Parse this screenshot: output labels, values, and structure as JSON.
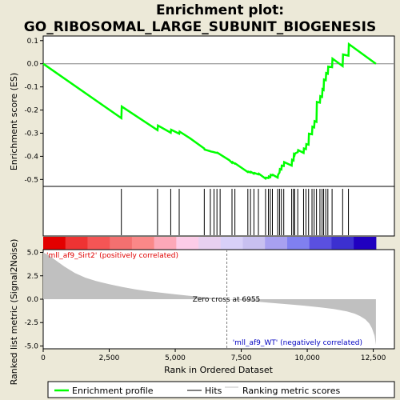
{
  "chart_data": {
    "type": "line",
    "title_line1": "Enrichment plot:",
    "title_line2": "GO_RIBOSOMAL_LARGE_SUBUNIT_BIOGENESIS",
    "top_panel": {
      "ylabel": "Enrichment score (ES)",
      "ylim": [
        -0.53,
        0.12
      ],
      "yticks": [
        -0.5,
        -0.4,
        -0.3,
        -0.2,
        -0.1,
        0.0,
        0.1
      ],
      "ytick_labels": [
        "-0.5",
        "-0.4",
        "-0.3",
        "-0.2",
        "-0.1",
        "0.0",
        "0.1"
      ],
      "series": {
        "name": "Enrichment profile",
        "color": "#00FF00",
        "x": [
          0,
          2960,
          2975,
          4330,
          4345,
          4830,
          4845,
          5150,
          5165,
          5560,
          6100,
          6115,
          6330,
          6345,
          6470,
          6485,
          6580,
          6595,
          6700,
          7050,
          7150,
          7165,
          7260,
          7275,
          7750,
          7765,
          7850,
          7865,
          7980,
          7995,
          8150,
          8165,
          8420,
          8435,
          8530,
          8545,
          8600,
          8615,
          8680,
          8695,
          8880,
          8895,
          8950,
          8965,
          9020,
          9035,
          9110,
          9125,
          9410,
          9425,
          9480,
          9495,
          9520,
          9535,
          9640,
          9655,
          9860,
          9875,
          9950,
          9965,
          10050,
          10065,
          10180,
          10195,
          10260,
          10275,
          10350,
          10365,
          10480,
          10495,
          10560,
          10575,
          10620,
          10635,
          10700,
          10715,
          10780,
          10795,
          10940,
          10955,
          11340,
          11355,
          11560,
          11575,
          12600
        ],
        "y": [
          0.0,
          -0.235,
          -0.185,
          -0.287,
          -0.267,
          -0.298,
          -0.285,
          -0.302,
          -0.293,
          -0.322,
          -0.366,
          -0.371,
          -0.378,
          -0.379,
          -0.382,
          -0.383,
          -0.385,
          -0.384,
          -0.392,
          -0.417,
          -0.428,
          -0.425,
          -0.432,
          -0.431,
          -0.468,
          -0.466,
          -0.47,
          -0.467,
          -0.475,
          -0.472,
          -0.478,
          -0.475,
          -0.496,
          -0.492,
          -0.494,
          -0.487,
          -0.49,
          -0.48,
          -0.482,
          -0.48,
          -0.492,
          -0.48,
          -0.47,
          -0.455,
          -0.457,
          -0.44,
          -0.442,
          -0.425,
          -0.44,
          -0.415,
          -0.418,
          -0.392,
          -0.395,
          -0.388,
          -0.382,
          -0.373,
          -0.385,
          -0.366,
          -0.369,
          -0.347,
          -0.35,
          -0.302,
          -0.305,
          -0.272,
          -0.275,
          -0.248,
          -0.251,
          -0.165,
          -0.168,
          -0.14,
          -0.143,
          -0.11,
          -0.113,
          -0.068,
          -0.071,
          -0.04,
          -0.043,
          -0.012,
          -0.015,
          0.022,
          -0.01,
          0.04,
          0.035,
          0.085,
          0.0
        ]
      }
    },
    "hits": {
      "name": "Hits",
      "positions": [
        2960,
        4330,
        4830,
        5150,
        6100,
        6330,
        6470,
        6580,
        6700,
        7150,
        7260,
        7750,
        7850,
        7980,
        8150,
        8420,
        8530,
        8600,
        8680,
        8880,
        8950,
        9020,
        9110,
        9410,
        9480,
        9520,
        9640,
        9860,
        9950,
        10050,
        10180,
        10260,
        10350,
        10480,
        10560,
        10620,
        10700,
        10780,
        10940,
        11340,
        11560
      ]
    },
    "rank_colorbar": {
      "colors": [
        "#E30000",
        "#EE3333",
        "#F45555",
        "#F37070",
        "#FA8888",
        "#FCA8B8",
        "#FCCCE8",
        "#E8D0F0",
        "#D8D0F8",
        "#C8C0F0",
        "#A8A0F0",
        "#8080F0",
        "#5A50E0",
        "#3C30D0",
        "#2000C0"
      ]
    },
    "bottom_panel": {
      "ylabel": "Ranked list metric (Signal2Noise)",
      "ylim": [
        -5.3,
        5.3
      ],
      "yticks": [
        -5.0,
        -2.5,
        0.0,
        2.5,
        5.0
      ],
      "ytick_labels": [
        "-5.0",
        "-2.5",
        "0.0",
        "2.5",
        "5.0"
      ],
      "series": {
        "name": "Ranking metric scores",
        "color": "#C0C0C0",
        "x": [
          0,
          200,
          500,
          800,
          1200,
          1600,
          2000,
          2500,
          3000,
          3500,
          4000,
          4500,
          5000,
          5500,
          6000,
          6500,
          6955,
          7500,
          8000,
          8500,
          9000,
          9500,
          10000,
          10500,
          11000,
          11500,
          11800,
          12000,
          12200,
          12350,
          12450,
          12550,
          12600
        ],
        "y": [
          5.0,
          4.7,
          4.1,
          3.5,
          2.8,
          2.3,
          1.95,
          1.6,
          1.3,
          1.05,
          0.85,
          0.68,
          0.52,
          0.38,
          0.25,
          0.12,
          0.0,
          -0.12,
          -0.24,
          -0.36,
          -0.48,
          -0.6,
          -0.73,
          -0.88,
          -1.05,
          -1.3,
          -1.55,
          -1.8,
          -2.15,
          -2.6,
          -3.1,
          -3.9,
          -4.9
        ]
      },
      "pos_label": "'mll_af9_Sirt2' (positively correlated)",
      "neg_label": "'mll_af9_WT' (negatively correlated)",
      "zero_cross_label": "Zero cross at 6955",
      "zero_cross": 6955
    },
    "xlabel": "Rank in Ordered Dataset",
    "xlim": [
      0,
      13300
    ],
    "xticks": [
      0,
      2500,
      5000,
      7500,
      10000,
      12500
    ],
    "xtick_labels": [
      "0",
      "2,500",
      "5,000",
      "7,500",
      "10,000",
      "12,500"
    ],
    "legend": {
      "placement": "bottom",
      "entries": [
        {
          "label": "Enrichment profile",
          "color": "#00FF00"
        },
        {
          "label": "Hits",
          "color": "#000000"
        },
        {
          "label": "Ranking metric scores",
          "color": "#C0C0C0"
        }
      ]
    }
  }
}
